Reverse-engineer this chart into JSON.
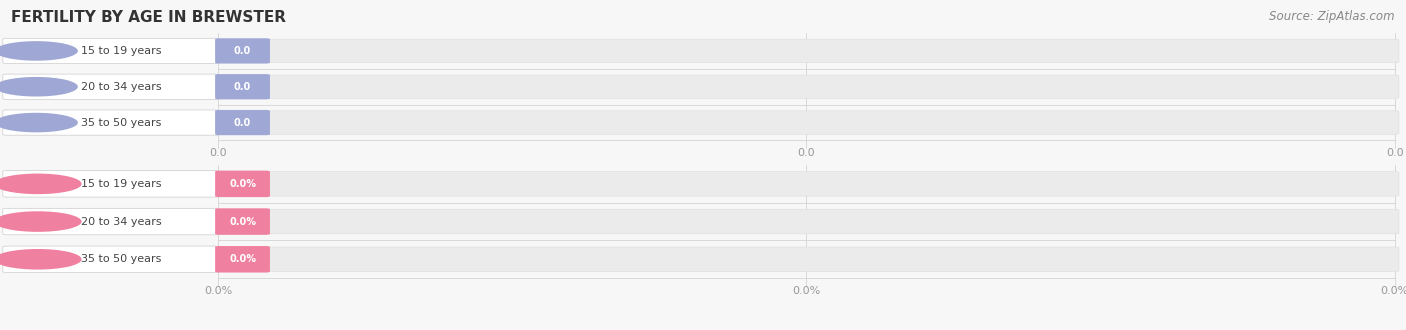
{
  "title": "FERTILITY BY AGE IN BREWSTER",
  "source_text": "Source: ZipAtlas.com",
  "background_color": "#f7f7f7",
  "top_section": {
    "categories": [
      "15 to 19 years",
      "20 to 34 years",
      "35 to 50 years"
    ],
    "values": [
      0.0,
      0.0,
      0.0
    ],
    "bar_color": "#9fa8d4",
    "value_format": "0.0",
    "tick_labels": [
      "0.0",
      "0.0",
      "0.0"
    ]
  },
  "bottom_section": {
    "categories": [
      "15 to 19 years",
      "20 to 34 years",
      "35 to 50 years"
    ],
    "values": [
      0.0,
      0.0,
      0.0
    ],
    "bar_color": "#f080a0",
    "value_format": "0.0%",
    "tick_labels": [
      "0.0%",
      "0.0%",
      "0.0%"
    ]
  },
  "figsize": [
    14.06,
    3.3
  ],
  "dpi": 100
}
